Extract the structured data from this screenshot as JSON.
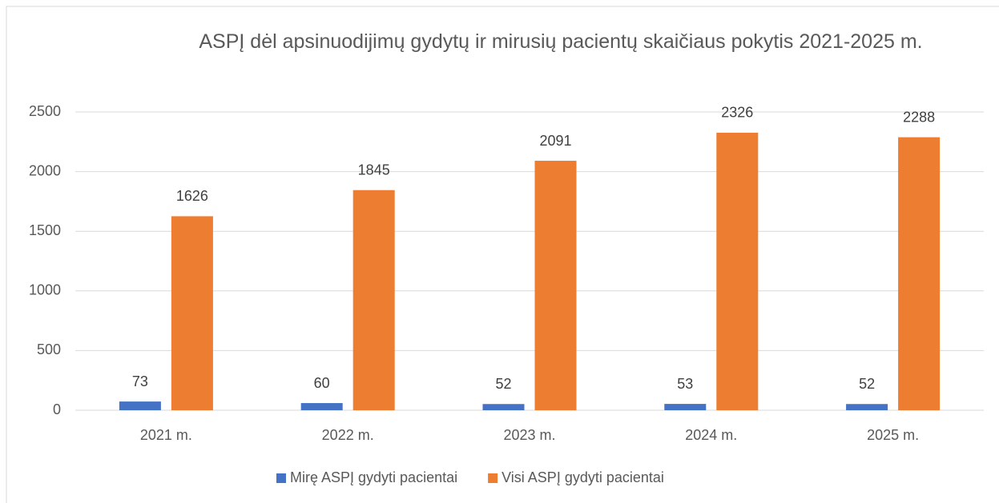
{
  "chart_data": {
    "type": "bar",
    "title": "ASPĮ dėl apsinuodijimų gydytų ir mirusių pacientų skaičiaus pokytis 2021-2025 m.",
    "categories": [
      "2021 m.",
      "2022 m.",
      "2023 m.",
      "2024 m.",
      "2025 m."
    ],
    "series": [
      {
        "name": "Mirę ASPĮ gydyti pacientai",
        "color": "#4472c4",
        "values": [
          73,
          60,
          52,
          53,
          52
        ]
      },
      {
        "name": "Visi ASPĮ gydyti pacientai",
        "color": "#ed7d31",
        "values": [
          1626,
          1845,
          2091,
          2326,
          2288
        ]
      }
    ],
    "ylim": [
      0,
      2500
    ],
    "yticks": [
      0,
      500,
      1000,
      1500,
      2000,
      2500
    ],
    "grid": true,
    "legend": "bottom"
  }
}
